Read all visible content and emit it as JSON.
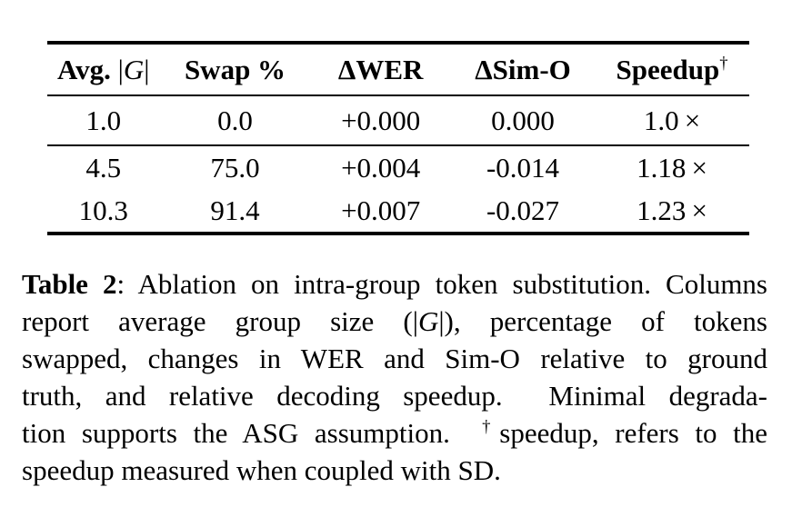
{
  "table": {
    "header": {
      "avg_prefix": "Avg.",
      "avg_bar1": "|",
      "avg_g": "G",
      "avg_bar2": "|",
      "swap": "Swap %",
      "delta_wer": "ΔWER",
      "delta_simo": "ΔSim-O",
      "speedup": "Speedup",
      "speedup_dagger": "†"
    },
    "rows": [
      [
        "1.0",
        "0.0",
        "+0.000",
        "0.000",
        "1.0 ×"
      ],
      [
        "4.5",
        "75.0",
        "+0.004",
        "-0.014",
        "1.18 ×"
      ],
      [
        "10.3",
        "91.4",
        "+0.007",
        "-0.027",
        "1.23 ×"
      ]
    ]
  },
  "caption": {
    "label": "Table 2",
    "line1_rest": ": Ablation on intra-group token substitution. Columns",
    "line2_a": "report average group size (|",
    "line2_g": "G",
    "line2_b": "|), percentage of tokens",
    "line3": "swapped, changes in WER and Sim-O relative to ground",
    "line4": "truth, and relative decoding speedup.  Minimal degrada-",
    "line5_a": "tion supports the ASG assumption.  ",
    "line5_dagger": "†",
    "line5_b": "speedup, refers to the",
    "line6": "speedup measured when coupled with SD."
  },
  "colors": {
    "text": "#000000",
    "background": "#ffffff",
    "rule": "#000000"
  }
}
